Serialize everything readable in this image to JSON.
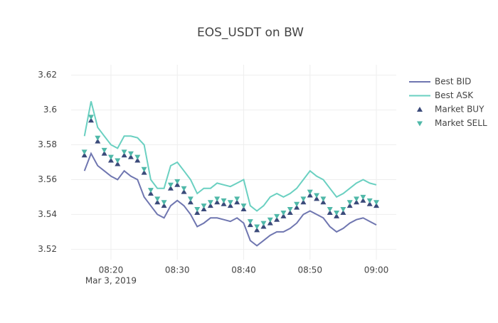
{
  "chart_data": {
    "type": "line",
    "title": "EOS_USDT on BW",
    "x": [
      "2019-03-03 08:16",
      "2019-03-03 08:17",
      "2019-03-03 08:18",
      "2019-03-03 08:19",
      "2019-03-03 08:20",
      "2019-03-03 08:21",
      "2019-03-03 08:22",
      "2019-03-03 08:23",
      "2019-03-03 08:24",
      "2019-03-03 08:25",
      "2019-03-03 08:26",
      "2019-03-03 08:27",
      "2019-03-03 08:28",
      "2019-03-03 08:29",
      "2019-03-03 08:30",
      "2019-03-03 08:31",
      "2019-03-03 08:32",
      "2019-03-03 08:33",
      "2019-03-03 08:34",
      "2019-03-03 08:35",
      "2019-03-03 08:36",
      "2019-03-03 08:37",
      "2019-03-03 08:38",
      "2019-03-03 08:39",
      "2019-03-03 08:40",
      "2019-03-03 08:41",
      "2019-03-03 08:42",
      "2019-03-03 08:43",
      "2019-03-03 08:44",
      "2019-03-03 08:45",
      "2019-03-03 08:46",
      "2019-03-03 08:47",
      "2019-03-03 08:48",
      "2019-03-03 08:49",
      "2019-03-03 08:50",
      "2019-03-03 08:51",
      "2019-03-03 08:52",
      "2019-03-03 08:53",
      "2019-03-03 08:54",
      "2019-03-03 08:55",
      "2019-03-03 08:56",
      "2019-03-03 08:57",
      "2019-03-03 08:58",
      "2019-03-03 08:59",
      "2019-03-03 09:00"
    ],
    "series": [
      {
        "name": "Best BID",
        "color": "#6f76b0",
        "mode": "lines",
        "values": [
          3.565,
          3.575,
          3.568,
          3.565,
          3.562,
          3.56,
          3.565,
          3.562,
          3.56,
          3.55,
          3.545,
          3.54,
          3.538,
          3.545,
          3.548,
          3.545,
          3.54,
          3.533,
          3.535,
          3.538,
          3.538,
          3.537,
          3.536,
          3.538,
          3.535,
          3.525,
          3.522,
          3.525,
          3.528,
          3.53,
          3.53,
          3.532,
          3.535,
          3.54,
          3.542,
          3.54,
          3.538,
          3.533,
          3.53,
          3.532,
          3.535,
          3.537,
          3.538,
          3.536,
          3.534
        ]
      },
      {
        "name": "Best ASK",
        "color": "#6ad0c1",
        "mode": "lines",
        "values": [
          3.585,
          3.605,
          3.59,
          3.585,
          3.58,
          3.578,
          3.585,
          3.585,
          3.584,
          3.58,
          3.56,
          3.555,
          3.555,
          3.568,
          3.57,
          3.565,
          3.56,
          3.552,
          3.555,
          3.555,
          3.558,
          3.557,
          3.556,
          3.558,
          3.56,
          3.545,
          3.542,
          3.545,
          3.55,
          3.552,
          3.55,
          3.552,
          3.555,
          3.56,
          3.565,
          3.562,
          3.56,
          3.555,
          3.55,
          3.552,
          3.555,
          3.558,
          3.56,
          3.558,
          3.557
        ]
      },
      {
        "name": "Market BUY",
        "color": "#3b4a7a",
        "mode": "markers",
        "marker": "triangle-up",
        "values": [
          3.574,
          3.594,
          3.582,
          3.575,
          3.571,
          3.569,
          3.574,
          3.573,
          3.571,
          3.564,
          3.552,
          3.547,
          3.545,
          3.555,
          3.557,
          3.553,
          3.547,
          3.541,
          3.543,
          3.545,
          3.547,
          3.546,
          3.545,
          3.547,
          3.543,
          3.534,
          3.531,
          3.533,
          3.535,
          3.537,
          3.539,
          3.541,
          3.544,
          3.547,
          3.551,
          3.549,
          3.547,
          3.541,
          3.539,
          3.541,
          3.545,
          3.547,
          3.548,
          3.546,
          3.545
        ]
      },
      {
        "name": "Market SELL",
        "color": "#4fb8a8",
        "mode": "markers",
        "marker": "triangle-down",
        "values": [
          3.576,
          3.596,
          3.584,
          3.577,
          3.573,
          3.571,
          3.576,
          3.575,
          3.573,
          3.566,
          3.554,
          3.549,
          3.547,
          3.557,
          3.559,
          3.555,
          3.549,
          3.543,
          3.545,
          3.547,
          3.549,
          3.548,
          3.547,
          3.549,
          3.545,
          3.536,
          3.533,
          3.535,
          3.537,
          3.539,
          3.541,
          3.543,
          3.546,
          3.549,
          3.553,
          3.551,
          3.549,
          3.543,
          3.541,
          3.543,
          3.547,
          3.549,
          3.55,
          3.548,
          3.547
        ]
      }
    ],
    "xlim": [
      "2019-03-03 08:14",
      "2019-03-03 09:03"
    ],
    "xticks": [
      {
        "value": "2019-03-03 08:20",
        "label": "08:20"
      },
      {
        "value": "2019-03-03 08:30",
        "label": "08:30"
      },
      {
        "value": "2019-03-03 08:40",
        "label": "08:40"
      },
      {
        "value": "2019-03-03 08:50",
        "label": "08:50"
      },
      {
        "value": "2019-03-03 09:00",
        "label": "09:00"
      }
    ],
    "x_date_label": "Mar 3, 2019",
    "ylim": [
      3.514,
      3.626
    ],
    "yticks": [
      3.52,
      3.54,
      3.56,
      3.58,
      3.6,
      3.62
    ],
    "grid": true,
    "legend": "right"
  }
}
